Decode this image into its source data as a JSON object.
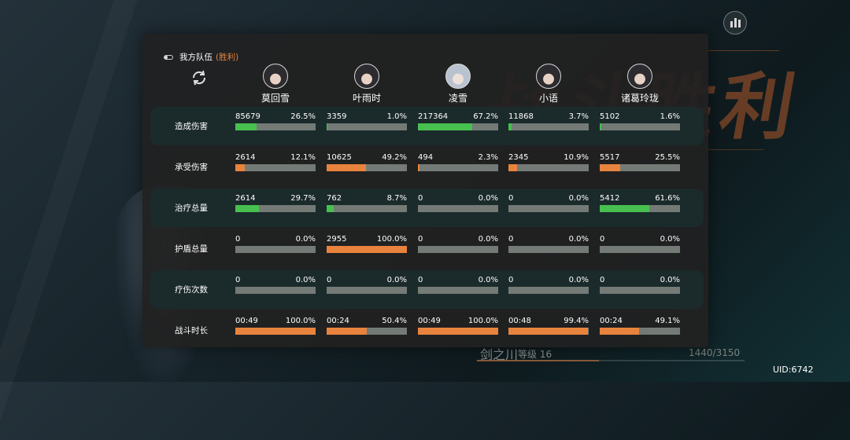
{
  "team": {
    "label": "我方队伍",
    "result": "(胜利)"
  },
  "background": {
    "title": "战斗胜利"
  },
  "heroes": [
    {
      "name": "莫回雪",
      "avatar": "avatar-dark"
    },
    {
      "name": "叶雨时",
      "avatar": "avatar-dark"
    },
    {
      "name": "凌雪",
      "avatar": "avatar-light"
    },
    {
      "name": "小语",
      "avatar": "avatar-dark"
    },
    {
      "name": "诸葛玲珑",
      "avatar": "avatar-dark"
    }
  ],
  "stats": [
    {
      "label": "造成伤害",
      "bar_color": "green",
      "cells": [
        {
          "value": "85679",
          "percent": "26.5%",
          "fraction": 0.265
        },
        {
          "value": "3359",
          "percent": "1.0%",
          "fraction": 0.01
        },
        {
          "value": "217364",
          "percent": "67.2%",
          "fraction": 0.672
        },
        {
          "value": "11868",
          "percent": "3.7%",
          "fraction": 0.037
        },
        {
          "value": "5102",
          "percent": "1.6%",
          "fraction": 0.016
        }
      ]
    },
    {
      "label": "承受伤害",
      "bar_color": "orange",
      "cells": [
        {
          "value": "2614",
          "percent": "12.1%",
          "fraction": 0.121
        },
        {
          "value": "10625",
          "percent": "49.2%",
          "fraction": 0.492
        },
        {
          "value": "494",
          "percent": "2.3%",
          "fraction": 0.023
        },
        {
          "value": "2345",
          "percent": "10.9%",
          "fraction": 0.109
        },
        {
          "value": "5517",
          "percent": "25.5%",
          "fraction": 0.255
        }
      ]
    },
    {
      "label": "治疗总量",
      "bar_color": "green",
      "cells": [
        {
          "value": "2614",
          "percent": "29.7%",
          "fraction": 0.297
        },
        {
          "value": "762",
          "percent": "8.7%",
          "fraction": 0.087
        },
        {
          "value": "0",
          "percent": "0.0%",
          "fraction": 0
        },
        {
          "value": "0",
          "percent": "0.0%",
          "fraction": 0
        },
        {
          "value": "5412",
          "percent": "61.6%",
          "fraction": 0.616
        }
      ]
    },
    {
      "label": "护盾总量",
      "bar_color": "orange",
      "cells": [
        {
          "value": "0",
          "percent": "0.0%",
          "fraction": 0
        },
        {
          "value": "2955",
          "percent": "100.0%",
          "fraction": 1.0
        },
        {
          "value": "0",
          "percent": "0.0%",
          "fraction": 0
        },
        {
          "value": "0",
          "percent": "0.0%",
          "fraction": 0
        },
        {
          "value": "0",
          "percent": "0.0%",
          "fraction": 0
        }
      ]
    },
    {
      "label": "疗伤次数",
      "bar_color": "orange",
      "cells": [
        {
          "value": "0",
          "percent": "0.0%",
          "fraction": 0
        },
        {
          "value": "0",
          "percent": "0.0%",
          "fraction": 0
        },
        {
          "value": "0",
          "percent": "0.0%",
          "fraction": 0
        },
        {
          "value": "0",
          "percent": "0.0%",
          "fraction": 0
        },
        {
          "value": "0",
          "percent": "0.0%",
          "fraction": 0
        }
      ]
    },
    {
      "label": "战斗时长",
      "bar_color": "orange",
      "cells": [
        {
          "value": "00:49",
          "percent": "100.0%",
          "fraction": 1.0
        },
        {
          "value": "00:24",
          "percent": "50.4%",
          "fraction": 0.504
        },
        {
          "value": "00:49",
          "percent": "100.0%",
          "fraction": 1.0
        },
        {
          "value": "00:48",
          "percent": "99.4%",
          "fraction": 0.994
        },
        {
          "value": "00:24",
          "percent": "49.1%",
          "fraction": 0.491
        }
      ]
    }
  ],
  "player": {
    "name": "剑之川",
    "level": "等级 16",
    "exp": "1440/3150",
    "exp_fraction": 0.457
  },
  "uid": "UID:6742",
  "colors": {
    "accent_orange": "#e8833d",
    "bar_green": "#47c04f",
    "bar_track": "#747a76",
    "panel_bg": "#212121",
    "row_dark": "#1b2a2b"
  },
  "icons": {
    "stats_button": "bar-chart-icon",
    "refresh": "refresh-icon",
    "toggle": "toggle-icon"
  }
}
